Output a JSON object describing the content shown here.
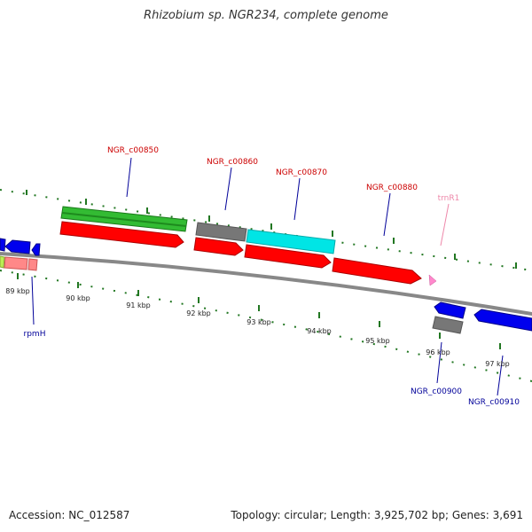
{
  "title": "Rhizobium sp. NGR234, complete genome",
  "footer": {
    "accession": "Accession: NC_012587",
    "summary": "Topology: circular; Length: 3,925,702 bp; Genes: 3,691"
  },
  "colors": {
    "forward_label": "#cc0000",
    "reverse_label": "#000099",
    "trna_label": "#ee88aa",
    "cds": "#ff0000",
    "gene_green": "#33bb33",
    "gene_cyan": "#00e5e5",
    "gene_gray": "#777777",
    "reverse_blue": "#0000ee",
    "tick": "#227722",
    "backbone": "#888888"
  },
  "scale": {
    "kbp_labels": [
      "89 kbp",
      "90 kbp",
      "91 kbp",
      "92 kbp",
      "93 kbp",
      "94 kbp",
      "95 kbp",
      "96 kbp",
      "97 kbp"
    ]
  },
  "genes": {
    "forward": [
      "NGR_c00850",
      "NGR_c00860",
      "NGR_c00870",
      "NGR_c00880"
    ],
    "trna": [
      "trnR1"
    ],
    "reverse": [
      "rpmH",
      "NGR_c00900",
      "NGR_c00910"
    ]
  }
}
